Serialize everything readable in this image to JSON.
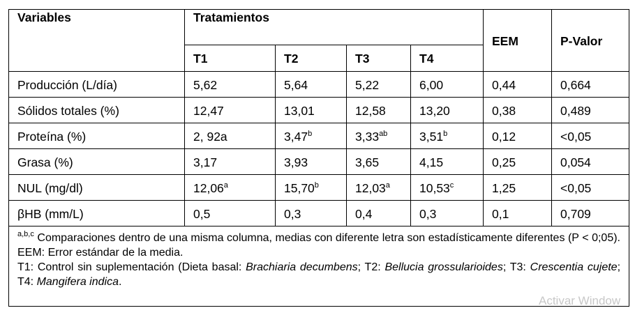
{
  "table": {
    "header": {
      "variables": "Variables",
      "tratamientos": "Tratamientos",
      "eem": "EEM",
      "pvalor": "P-Valor",
      "treatments": [
        "T1",
        "T2",
        "T3",
        "T4"
      ]
    },
    "rows": [
      [
        "Producción (L/día)",
        "5,62",
        "5,64",
        "5,22",
        "6,00",
        "0,44",
        "0,664"
      ],
      [
        "Sólidos totales (%)",
        "12,47",
        "13,01",
        "12,58",
        "13,20",
        "0,38",
        "0,489"
      ],
      [
        "Proteína (%)",
        "2, 92a",
        {
          "text": "3,47",
          "sup": "b"
        },
        {
          "text": "3,33",
          "sup": "ab"
        },
        {
          "text": "3,51",
          "sup": "b"
        },
        "0,12",
        "<0,05"
      ],
      [
        "Grasa (%)",
        "3,17",
        "3,93",
        "3,65",
        "4,15",
        "0,25",
        "0,054"
      ],
      [
        "NUL (mg/dl)",
        {
          "text": "12,06",
          "sup": "a"
        },
        {
          "text": "15,70",
          "sup": "b"
        },
        {
          "text": "12,03",
          "sup": "a"
        },
        {
          "text": "10,53",
          "sup": "c"
        },
        "1,25",
        "<0,05"
      ],
      [
        "βHB (mm/L)",
        "0,5",
        "0,3",
        "0,4",
        "0,3",
        "0,1",
        "0,709"
      ]
    ],
    "footnote": {
      "sup": "a,b,c",
      "note1": " Comparaciones dentro de una misma columna, medias con diferente letra son estadísticamente diferentes (P < 0;05). EEM: Error estándar de la media.",
      "note2": [
        {
          "text": "T1: Control sin suplementación (Dieta basal: "
        },
        {
          "text": "Brachiaria decumbens",
          "italic": true
        },
        {
          "text": "; T2: "
        },
        {
          "text": "Bellucia grossularioides",
          "italic": true
        },
        {
          "text": "; T3: "
        },
        {
          "text": "Crescentia cujete",
          "italic": true
        },
        {
          "text": "; T4: "
        },
        {
          "text": "Mangifera indica",
          "italic": true
        },
        {
          "text": "."
        }
      ]
    }
  },
  "watermark": "Activar Window"
}
